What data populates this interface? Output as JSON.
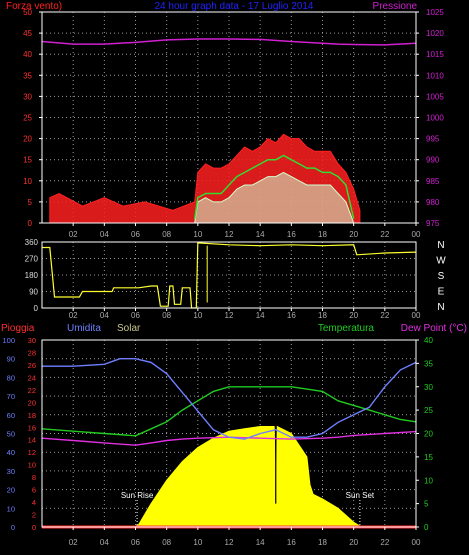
{
  "colors": {
    "background": "#000000",
    "frame": "#ffffff",
    "grid": "#9a9a9a",
    "wind_max": "#ff2020",
    "wind_mean": "#d0ffd0",
    "wind_avg2": "#30dd30",
    "pressure": "#d020d0",
    "direction": "#ffff30",
    "humidity": "#6f7fff",
    "temperature": "#20cc20",
    "dewpoint": "#e030e0",
    "solar": "#ffff00",
    "rain": "#ff3030",
    "sun_event": "#ffffff"
  },
  "chart_data": [
    {
      "type": "line",
      "title": "24 hour graph data - 17 Luglio 2014",
      "left_label": "Forza vento)",
      "right_label": "Pressione",
      "x_ticks": [
        "02",
        "04",
        "06",
        "08",
        "10",
        "12",
        "14",
        "16",
        "18",
        "20",
        "22",
        "00"
      ],
      "x_range_hours": [
        0,
        24
      ],
      "y_left_ticks": [
        "0",
        "5",
        "10",
        "15",
        "20",
        "25",
        "30",
        "35",
        "40",
        "45",
        "50"
      ],
      "y_left_range": [
        0,
        50
      ],
      "y_right_ticks": [
        "975",
        "980",
        "985",
        "990",
        "995",
        "1000",
        "1005",
        "1010",
        "1015",
        "1020",
        "1025"
      ],
      "y_right_range": [
        975,
        1025
      ],
      "grid": true,
      "series": [
        {
          "name": "Forza vento max",
          "axis": "left",
          "color": "#ff2020",
          "x": [
            0.5,
            1.1,
            2.6,
            4.0,
            5.2,
            6.6,
            8.4,
            9.8,
            10.0,
            10.5,
            11.0,
            11.5,
            12.0,
            12.5,
            13.0,
            13.5,
            14.0,
            14.5,
            15.0,
            15.5,
            16.0,
            16.5,
            17.0,
            17.5,
            18.0,
            18.5,
            19.0,
            19.5,
            20.0,
            20.4
          ],
          "y": [
            6,
            7,
            4,
            6,
            4,
            5,
            3,
            5,
            12,
            14,
            13,
            13,
            14,
            16,
            18,
            17,
            18,
            20,
            19,
            21,
            20,
            20,
            18,
            17,
            17,
            17,
            14,
            12,
            8,
            3
          ]
        },
        {
          "name": "Forza vento media",
          "axis": "left",
          "color": "#d0ffd0",
          "x": [
            9.8,
            10.0,
            10.5,
            11.0,
            11.5,
            12.0,
            12.5,
            13.0,
            13.5,
            14.0,
            14.5,
            15.0,
            15.5,
            16.0,
            16.5,
            17.0,
            17.5,
            18.0,
            18.5,
            19.0,
            19.5,
            20.0
          ],
          "y": [
            0,
            5,
            6,
            5,
            5,
            6,
            8,
            9,
            9,
            10,
            11,
            11,
            12,
            11,
            10,
            9,
            9,
            9,
            9,
            7,
            5,
            0
          ]
        },
        {
          "name": "Vento medio",
          "axis": "left",
          "color": "#30dd30",
          "x": [
            9.8,
            10.0,
            10.5,
            11.0,
            11.5,
            12.0,
            12.5,
            13.0,
            13.5,
            14.0,
            14.5,
            15.0,
            15.5,
            16.0,
            16.5,
            17.0,
            17.5,
            18.0,
            18.5,
            19.0,
            19.5,
            20.0
          ],
          "y": [
            1,
            6,
            7,
            7,
            7,
            9,
            11,
            12,
            13,
            14,
            15,
            15,
            16,
            15,
            14,
            13,
            13,
            12,
            12,
            11,
            9,
            1
          ]
        },
        {
          "name": "Pressione",
          "axis": "right",
          "color": "#d020d0",
          "x": [
            0,
            2,
            4,
            6,
            8,
            10,
            12,
            14,
            16,
            18,
            19,
            20,
            22,
            24
          ],
          "y": [
            1018.0,
            1017.4,
            1017.4,
            1017.8,
            1018.4,
            1018.6,
            1018.6,
            1018.5,
            1018.0,
            1017.6,
            1017.4,
            1017.3,
            1017.2,
            1017.6
          ]
        }
      ]
    },
    {
      "type": "line",
      "x_ticks": [
        "02",
        "04",
        "06",
        "08",
        "10",
        "12",
        "14",
        "16",
        "18",
        "20",
        "22",
        "00"
      ],
      "x_range_hours": [
        0,
        24
      ],
      "y_left_ticks": [
        "0",
        "90",
        "180",
        "270",
        "360"
      ],
      "y_left_range": [
        0,
        360
      ],
      "y_right_ticks": [
        "N",
        "W",
        "S",
        "E",
        "N"
      ],
      "grid": true,
      "series": [
        {
          "name": "Direzione vento",
          "color": "#ffff30",
          "x": [
            0,
            0.5,
            0.8,
            2.4,
            2.6,
            4.5,
            4.6,
            6.2,
            7.0,
            7.4,
            7.6,
            8.1,
            8.2,
            8.4,
            8.5,
            8.9,
            9.0,
            9.5,
            9.6,
            9.9,
            10.0,
            12.0,
            14.0,
            16.0,
            18.0,
            20.0,
            20.2,
            22.0,
            24.0
          ],
          "y": [
            330,
            330,
            60,
            60,
            90,
            90,
            110,
            110,
            120,
            120,
            10,
            10,
            120,
            120,
            20,
            20,
            110,
            110,
            0,
            0,
            355,
            345,
            340,
            345,
            340,
            345,
            290,
            300,
            305
          ]
        }
      ]
    },
    {
      "type": "area",
      "left_labels": [
        "Pioggia",
        "Umidita",
        "Solar"
      ],
      "right_labels": [
        "Temperatura",
        "Dew Point (°C)"
      ],
      "x_ticks": [
        "02",
        "04",
        "06",
        "08",
        "10",
        "12",
        "14",
        "16",
        "18",
        "20",
        "22",
        "00"
      ],
      "x_range_hours": [
        0,
        24
      ],
      "y_rain_ticks": [
        "0",
        "2",
        "4",
        "6",
        "8",
        "10",
        "12",
        "14",
        "16",
        "18",
        "20",
        "22",
        "24",
        "26",
        "28",
        "30"
      ],
      "y_rain_range": [
        0,
        30
      ],
      "y_humidity_ticks": [
        "0",
        "10",
        "20",
        "30",
        "40",
        "50",
        "60",
        "70",
        "80",
        "90",
        "100"
      ],
      "y_humidity_range": [
        0,
        100
      ],
      "y_temperature_ticks": [
        "0",
        "5",
        "10",
        "15",
        "20",
        "25",
        "30",
        "35",
        "40"
      ],
      "y_temperature_range": [
        0,
        40
      ],
      "grid": true,
      "annotations": [
        {
          "text": "Sun Rise",
          "x": 6.1
        },
        {
          "text": "Sun Set",
          "x": 20.4
        }
      ],
      "series": [
        {
          "name": "Umidita",
          "axis": "humidity",
          "color": "#6f7fff",
          "x": [
            0,
            2,
            4,
            5,
            6,
            7,
            8,
            9,
            10,
            11,
            12,
            13,
            14,
            15,
            16,
            17,
            18,
            19,
            20,
            21,
            22,
            23,
            24
          ],
          "y": [
            86,
            86,
            87,
            90,
            90,
            88,
            82,
            72,
            62,
            52,
            48,
            47,
            50,
            52,
            48,
            48,
            50,
            56,
            60,
            64,
            75,
            84,
            88
          ]
        },
        {
          "name": "Temperatura",
          "axis": "temperature",
          "color": "#20cc20",
          "x": [
            0,
            2,
            4,
            6,
            7,
            8,
            9,
            10,
            11,
            12,
            13,
            14,
            15,
            16,
            17,
            18,
            19,
            20,
            21,
            22,
            23,
            24
          ],
          "y": [
            21,
            20.5,
            20,
            19.5,
            21,
            22.5,
            25,
            27,
            29,
            30,
            30,
            30,
            30,
            30,
            29.5,
            29,
            27,
            26,
            25,
            24,
            23,
            22.5
          ]
        },
        {
          "name": "Dew Point",
          "axis": "temperature",
          "color": "#e030e0",
          "x": [
            0,
            2,
            4,
            6,
            7,
            8,
            9,
            10,
            12,
            14,
            16,
            18,
            19,
            20,
            22,
            24
          ],
          "y": [
            19,
            18.5,
            18,
            17.5,
            18,
            18.5,
            18.8,
            19,
            19.2,
            19,
            18.8,
            19,
            19.2,
            19.6,
            20,
            20.4
          ]
        },
        {
          "name": "Solar",
          "axis": "temperature",
          "color": "#ffff00",
          "x": [
            0,
            5.9,
            6.2,
            7.0,
            8.0,
            9.0,
            10.0,
            11.0,
            12.0,
            13.0,
            14.0,
            14.9,
            15.0,
            15.1,
            16.0,
            17.0,
            17.2,
            17.4,
            18.0,
            19.0,
            20.0,
            20.5,
            24.0
          ],
          "y": [
            0,
            0,
            0.5,
            5,
            10,
            14,
            17,
            19,
            20.5,
            21,
            21.5,
            21.5,
            5,
            21.5,
            20,
            15,
            9,
            7,
            6,
            4,
            1,
            0,
            0
          ]
        },
        {
          "name": "Pioggia",
          "axis": "rain",
          "color": "#ff3030",
          "x": [
            0,
            24
          ],
          "y": [
            0,
            0
          ]
        }
      ]
    }
  ]
}
